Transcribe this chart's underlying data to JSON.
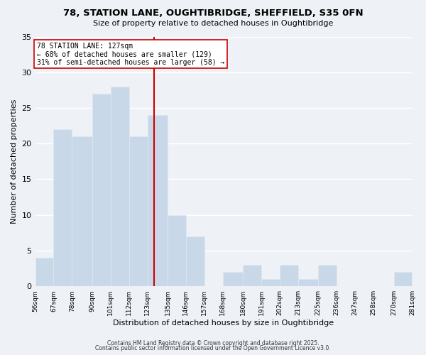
{
  "title": "78, STATION LANE, OUGHTIBRIDGE, SHEFFIELD, S35 0FN",
  "subtitle": "Size of property relative to detached houses in Oughtibridge",
  "xlabel": "Distribution of detached houses by size in Oughtibridge",
  "ylabel": "Number of detached properties",
  "bar_color": "#c8d8e8",
  "bar_edge_color": "#e0e8f0",
  "background_color": "#eef2f7",
  "grid_color": "#ffffff",
  "bins": [
    56,
    67,
    78,
    90,
    101,
    112,
    123,
    135,
    146,
    157,
    168,
    180,
    191,
    202,
    213,
    225,
    236,
    247,
    258,
    270,
    281
  ],
  "counts": [
    4,
    22,
    21,
    27,
    28,
    21,
    24,
    10,
    7,
    0,
    2,
    3,
    1,
    3,
    1,
    3,
    0,
    0,
    0,
    2
  ],
  "vline_x": 127,
  "vline_color": "#cc0000",
  "annotation_title": "78 STATION LANE: 127sqm",
  "annotation_line1": "← 68% of detached houses are smaller (129)",
  "annotation_line2": "31% of semi-detached houses are larger (58) →",
  "annotation_box_color": "#ffffff",
  "annotation_box_edge": "#cc0000",
  "ylim": [
    0,
    35
  ],
  "yticks": [
    0,
    5,
    10,
    15,
    20,
    25,
    30,
    35
  ],
  "tick_labels": [
    "56sqm",
    "67sqm",
    "78sqm",
    "90sqm",
    "101sqm",
    "112sqm",
    "123sqm",
    "135sqm",
    "146sqm",
    "157sqm",
    "168sqm",
    "180sqm",
    "191sqm",
    "202sqm",
    "213sqm",
    "225sqm",
    "236sqm",
    "247sqm",
    "258sqm",
    "270sqm",
    "281sqm"
  ],
  "footer1": "Contains HM Land Registry data © Crown copyright and database right 2025.",
  "footer2": "Contains public sector information licensed under the Open Government Licence v3.0."
}
